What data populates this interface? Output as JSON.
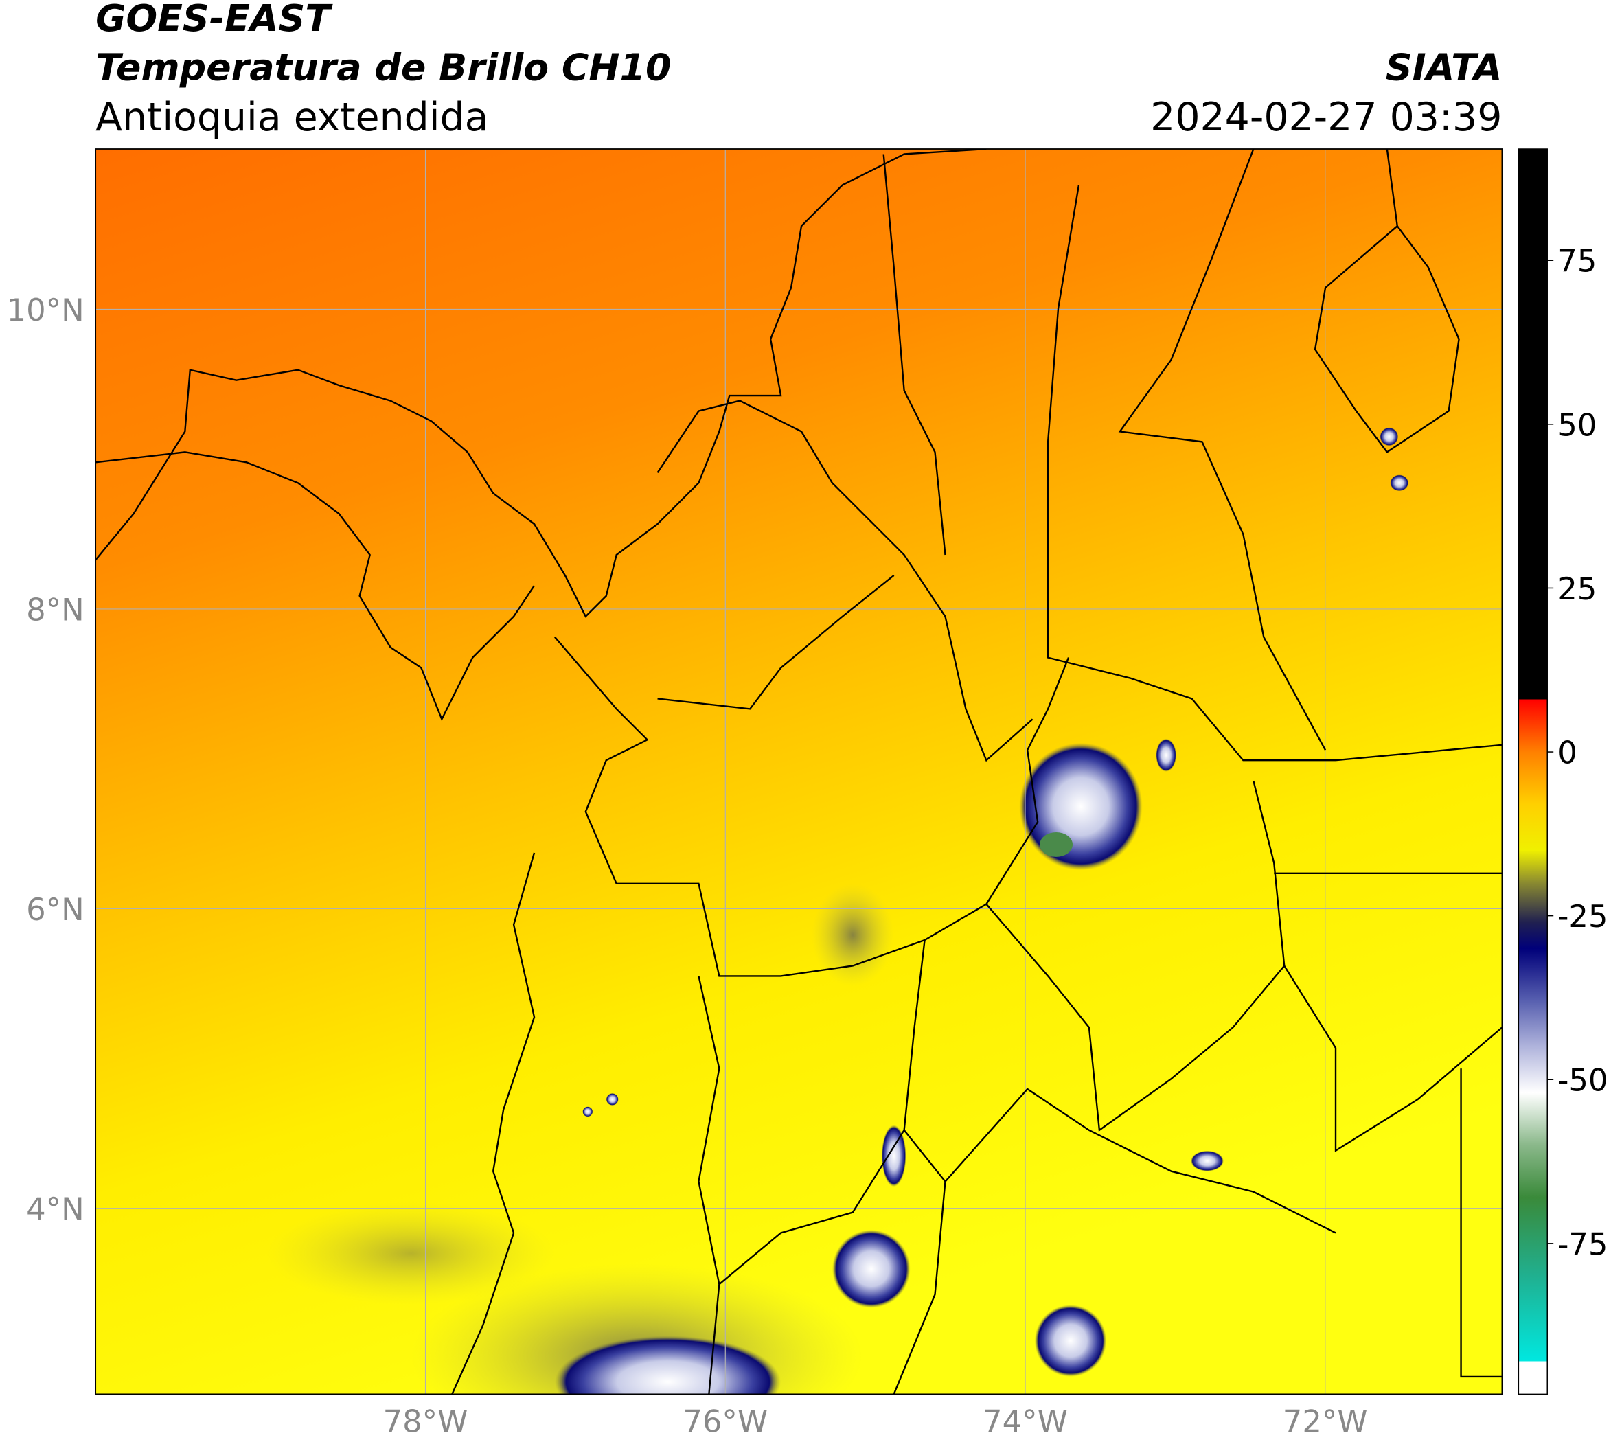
{
  "header": {
    "title": "GOES-EAST",
    "subtitle": "Temperatura de Brillo CH10",
    "region": "Antioquia extendida",
    "source": "SIATA",
    "datetime": "2024-02-27 03:39"
  },
  "map": {
    "xlim": [
      -80.2,
      -70.82
    ],
    "ylim": [
      2.76,
      11.07
    ],
    "grid": true,
    "xticks": [
      {
        "value": -78,
        "label": "78°W"
      },
      {
        "value": -76,
        "label": "76°W"
      },
      {
        "value": -74,
        "label": "74°W"
      },
      {
        "value": -72,
        "label": "72°W"
      }
    ],
    "yticks": [
      {
        "value": 4,
        "label": "4°N"
      },
      {
        "value": 6,
        "label": "6°N"
      },
      {
        "value": 8,
        "label": "8°N"
      },
      {
        "value": 10,
        "label": "10°N"
      }
    ]
  },
  "colorbar": {
    "lim": [
      -98,
      92
    ],
    "ticks": [
      -75,
      -50,
      -25,
      0,
      25,
      50,
      75
    ],
    "stops": [
      {
        "value": -98,
        "color": "#ffffff"
      },
      {
        "value": -93,
        "color": "#ffffff"
      },
      {
        "value": -93,
        "color": "#00e8e0"
      },
      {
        "value": -80,
        "color": "#20b090"
      },
      {
        "value": -68,
        "color": "#3a8a3a"
      },
      {
        "value": -60,
        "color": "#8ab88a"
      },
      {
        "value": -52,
        "color": "#ffffff"
      },
      {
        "value": -45,
        "color": "#b0b4dc"
      },
      {
        "value": -38,
        "color": "#5860b0"
      },
      {
        "value": -30,
        "color": "#00007a"
      },
      {
        "value": -26,
        "color": "#202050"
      },
      {
        "value": -20,
        "color": "#8a8a30"
      },
      {
        "value": -15,
        "color": "#f0f000"
      },
      {
        "value": -8,
        "color": "#ffd000"
      },
      {
        "value": 0,
        "color": "#ff8000"
      },
      {
        "value": 8,
        "color": "#ff0000"
      },
      {
        "value": 8,
        "color": "#000000"
      },
      {
        "value": 92,
        "color": "#000000"
      }
    ]
  }
}
